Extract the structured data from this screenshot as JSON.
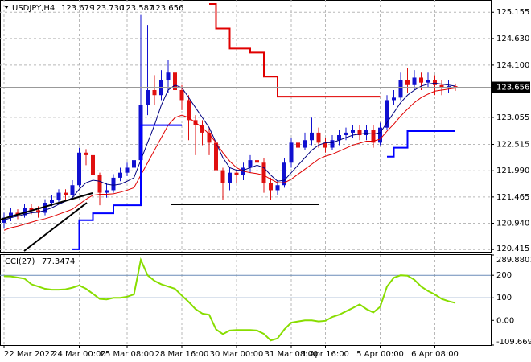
{
  "chart_data": [
    {
      "type": "candlestick",
      "title": "USDJPY,H4",
      "ohlc_labels": [
        "123.679",
        "123.730",
        "123.587",
        "123.656"
      ],
      "categories": [
        "22 Mar 2022",
        null,
        null,
        null,
        null,
        null,
        null,
        null,
        null,
        null,
        null,
        "24 Mar 00:00",
        null,
        null,
        null,
        null,
        null,
        null,
        "25 Mar 08:00",
        null,
        null,
        null,
        null,
        null,
        null,
        null,
        "28 Mar 16:00",
        null,
        null,
        null,
        null,
        null,
        null,
        null,
        "30 Mar 00:00",
        null,
        null,
        null,
        null,
        null,
        null,
        null,
        "31 Mar 08:00",
        null,
        null,
        null,
        null,
        "1 Apr 16:00",
        null,
        null,
        null,
        null,
        null,
        null,
        null,
        "5 Apr 00:00",
        null,
        null,
        null,
        null,
        null,
        null,
        null,
        "6 Apr 08:00",
        null,
        null,
        null
      ],
      "open": [
        120.95,
        121.05,
        121.15,
        121.1,
        121.25,
        121.2,
        121.15,
        121.35,
        121.4,
        121.55,
        121.5,
        121.7,
        122.35,
        122.3,
        121.9,
        121.55,
        121.6,
        121.85,
        121.95,
        122.05,
        122.2,
        123.3,
        123.6,
        123.5,
        123.8,
        123.95,
        123.6,
        123.4,
        123.0,
        122.9,
        122.75,
        122.55,
        122.0,
        121.75,
        121.95,
        121.9,
        122.05,
        122.2,
        122.15,
        121.75,
        121.6,
        121.7,
        122.15,
        122.55,
        122.45,
        122.6,
        122.75,
        122.55,
        122.45,
        122.6,
        122.7,
        122.75,
        122.8,
        122.7,
        122.8,
        122.55,
        122.85,
        123.4,
        123.45,
        123.8,
        123.7,
        123.85,
        123.75,
        123.8,
        123.7,
        123.66,
        123.679
      ],
      "high": [
        121.15,
        121.25,
        121.22,
        121.33,
        121.32,
        121.28,
        121.42,
        121.5,
        121.62,
        121.62,
        121.8,
        122.45,
        122.42,
        122.35,
        121.95,
        121.75,
        121.92,
        122.05,
        122.15,
        122.3,
        125.1,
        124.9,
        123.9,
        124.0,
        124.2,
        124.05,
        123.7,
        123.5,
        123.1,
        123.0,
        122.85,
        122.6,
        122.05,
        122.05,
        122.0,
        122.15,
        122.3,
        122.35,
        122.25,
        121.85,
        121.8,
        122.25,
        122.65,
        122.7,
        122.75,
        123.05,
        122.85,
        122.65,
        122.7,
        122.8,
        122.85,
        122.9,
        122.9,
        122.9,
        122.9,
        122.95,
        123.5,
        123.6,
        123.95,
        124.05,
        124.0,
        123.95,
        123.95,
        123.9,
        123.8,
        123.8,
        123.73
      ],
      "low": [
        120.85,
        120.98,
        121.02,
        121.05,
        121.12,
        121.05,
        121.1,
        121.28,
        121.35,
        121.4,
        121.45,
        121.65,
        122.1,
        121.8,
        121.3,
        121.45,
        121.55,
        121.78,
        121.88,
        121.95,
        122.15,
        123.1,
        123.3,
        123.4,
        123.55,
        123.45,
        123.2,
        122.6,
        122.3,
        122.5,
        122.3,
        121.7,
        121.4,
        121.6,
        121.75,
        121.8,
        121.95,
        122.0,
        121.55,
        121.4,
        121.5,
        121.65,
        122.05,
        122.35,
        122.4,
        122.5,
        122.45,
        122.35,
        122.4,
        122.5,
        122.6,
        122.65,
        122.6,
        122.6,
        122.45,
        122.5,
        122.8,
        123.3,
        123.4,
        123.55,
        123.6,
        123.6,
        123.65,
        123.5,
        123.5,
        123.55,
        123.587
      ],
      "close": [
        121.05,
        121.15,
        121.1,
        121.25,
        121.2,
        121.15,
        121.35,
        121.4,
        121.55,
        121.5,
        121.7,
        122.35,
        122.3,
        121.9,
        121.55,
        121.6,
        121.85,
        121.95,
        122.05,
        122.2,
        123.3,
        123.6,
        123.5,
        123.8,
        123.95,
        123.6,
        123.4,
        123.0,
        122.9,
        122.75,
        122.55,
        122.0,
        121.75,
        121.95,
        121.9,
        122.05,
        122.2,
        122.15,
        121.75,
        121.6,
        121.7,
        122.15,
        122.55,
        122.45,
        122.6,
        122.75,
        122.55,
        122.45,
        122.6,
        122.7,
        122.75,
        122.8,
        122.7,
        122.8,
        122.55,
        122.85,
        123.4,
        123.45,
        123.8,
        123.7,
        123.85,
        123.75,
        123.8,
        123.7,
        123.66,
        123.679,
        123.656
      ],
      "colors": {
        "up": "#1010d0",
        "down": "#e01010"
      },
      "series": [
        {
          "color": "#000080",
          "width": 1,
          "values": [
            121.0,
            121.05,
            121.08,
            121.12,
            121.15,
            121.16,
            121.2,
            121.25,
            121.32,
            121.38,
            121.45,
            121.62,
            121.75,
            121.8,
            121.78,
            121.72,
            121.7,
            121.72,
            121.78,
            121.85,
            122.2,
            122.55,
            122.9,
            123.3,
            123.6,
            123.7,
            123.65,
            123.45,
            123.25,
            123.05,
            122.85,
            122.55,
            122.25,
            122.05,
            122.0,
            122.0,
            122.05,
            122.1,
            122.05,
            121.9,
            121.78,
            121.8,
            121.95,
            122.1,
            122.25,
            122.4,
            122.5,
            122.55,
            122.55,
            122.6,
            122.65,
            122.7,
            122.72,
            122.74,
            122.72,
            122.75,
            122.95,
            123.15,
            123.35,
            123.5,
            123.6,
            123.68,
            123.72,
            123.74,
            123.72,
            123.7,
            123.68
          ]
        },
        {
          "color": "#e00000",
          "width": 1,
          "values": [
            120.8,
            120.85,
            120.88,
            120.92,
            120.96,
            121.0,
            121.03,
            121.07,
            121.12,
            121.17,
            121.22,
            121.32,
            121.42,
            121.5,
            121.52,
            121.52,
            121.53,
            121.56,
            121.6,
            121.65,
            121.9,
            122.15,
            122.4,
            122.65,
            122.9,
            123.05,
            123.1,
            123.05,
            122.95,
            122.85,
            122.72,
            122.55,
            122.35,
            122.18,
            122.05,
            121.98,
            121.95,
            121.93,
            121.9,
            121.82,
            121.75,
            121.75,
            121.82,
            121.92,
            122.02,
            122.12,
            122.22,
            122.28,
            122.32,
            122.38,
            122.44,
            122.5,
            122.54,
            122.58,
            122.58,
            122.62,
            122.78,
            122.92,
            123.08,
            123.22,
            123.35,
            123.45,
            123.52,
            123.58,
            123.6,
            123.62,
            123.64
          ]
        },
        {
          "color": "#e00000",
          "width": 2,
          "step": true,
          "values": [
            null,
            null,
            null,
            null,
            null,
            null,
            null,
            null,
            null,
            null,
            null,
            null,
            null,
            null,
            null,
            null,
            null,
            null,
            null,
            null,
            null,
            null,
            null,
            null,
            null,
            null,
            null,
            null,
            null,
            null,
            125.32,
            124.83,
            124.83,
            124.43,
            124.43,
            124.43,
            124.35,
            124.35,
            123.87,
            123.87,
            123.47,
            123.47,
            123.47,
            123.47,
            123.47,
            123.47,
            123.47,
            123.47,
            123.47,
            123.47,
            123.47,
            123.47,
            123.47,
            123.47,
            123.47,
            123.47,
            null,
            null,
            null,
            null,
            null,
            null,
            null,
            null,
            null,
            null,
            null
          ]
        },
        {
          "color": "#0000ff",
          "width": 2,
          "step": true,
          "values": [
            null,
            null,
            null,
            null,
            null,
            null,
            null,
            null,
            null,
            null,
            120.42,
            121.0,
            121.0,
            121.14,
            121.14,
            121.14,
            121.3,
            121.3,
            121.3,
            121.3,
            122.9,
            122.9,
            122.9,
            122.9,
            122.9,
            122.9,
            122.9,
            null,
            null,
            null,
            null,
            null,
            null,
            null,
            null,
            null,
            null,
            null,
            null,
            null,
            null,
            null,
            null,
            null,
            null,
            null,
            null,
            null,
            null,
            null,
            null,
            null,
            null,
            null,
            null,
            null,
            122.27,
            122.45,
            122.45,
            122.78,
            122.78,
            122.78,
            122.78,
            122.78,
            122.78,
            122.78,
            122.78
          ]
        }
      ],
      "ylim": [
        120.37,
        125.4
      ],
      "yticks": [
        125.155,
        {
          "value": 124.63,
          "label": "124.630"
        },
        {
          "value": 124.1,
          "label": "124.100"
        },
        123.055,
        122.515,
        {
          "value": 121.99,
          "label": "121.990"
        },
        121.465,
        {
          "value": 120.94,
          "label": "120.940"
        },
        120.415
      ],
      "last_price": 123.656,
      "grid": true
    },
    {
      "type": "line",
      "title": "CCI(27)",
      "color": "#88dd00",
      "values": [
        196,
        195,
        190,
        185,
        160,
        150,
        140,
        136,
        136,
        138,
        145,
        155,
        140,
        118,
        95,
        93,
        100,
        100,
        105,
        115,
        268,
        200,
        175,
        160,
        150,
        140,
        110,
        82,
        50,
        30,
        25,
        -40,
        -61,
        -45,
        -43,
        -43,
        -43,
        -45,
        -60,
        -89,
        -80,
        -40,
        -10,
        -5,
        0,
        0,
        -5,
        -2,
        15,
        25,
        40,
        55,
        71,
        50,
        35,
        60,
        150,
        189,
        200,
        198,
        180,
        150,
        130,
        115,
        95,
        85,
        77.3474
      ],
      "ylim": [
        -109.6698,
        289.8801
      ],
      "yticks": [
        289.8801,
        200,
        100,
        {
          "value": 0,
          "label": "0.00"
        },
        -109.6698
      ],
      "level_color": "#6a8cb8"
    }
  ]
}
